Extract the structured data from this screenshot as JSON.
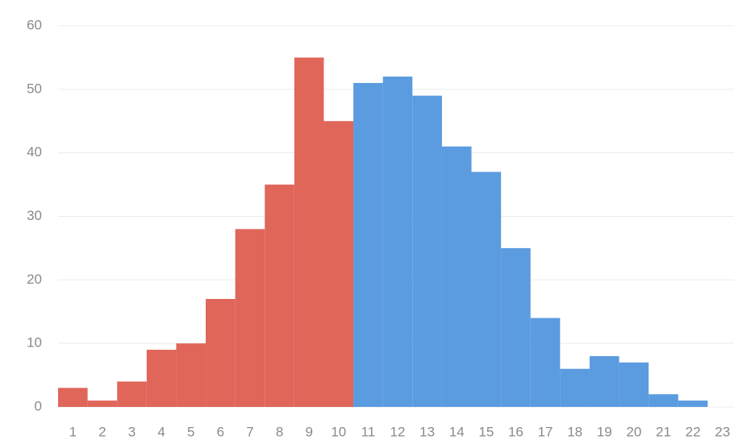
{
  "chart_data": {
    "type": "bar",
    "categories": [
      "1",
      "2",
      "3",
      "4",
      "5",
      "6",
      "7",
      "8",
      "9",
      "10",
      "11",
      "12",
      "13",
      "14",
      "15",
      "16",
      "17",
      "18",
      "19",
      "20",
      "21",
      "22",
      "23"
    ],
    "values": [
      3,
      1,
      4,
      9,
      10,
      17,
      28,
      35,
      55,
      45,
      51,
      52,
      49,
      41,
      37,
      25,
      14,
      6,
      8,
      7,
      2,
      1,
      null
    ],
    "colors": [
      "#e0665a",
      "#e0665a",
      "#e0665a",
      "#e0665a",
      "#e0665a",
      "#e0665a",
      "#e0665a",
      "#e0665a",
      "#e0665a",
      "#e0665a",
      "#5b9be0",
      "#5b9be0",
      "#5b9be0",
      "#5b9be0",
      "#5b9be0",
      "#5b9be0",
      "#5b9be0",
      "#5b9be0",
      "#5b9be0",
      "#5b9be0",
      "#5b9be0",
      "#5b9be0",
      null
    ],
    "ylim": [
      0,
      60
    ],
    "yticks": [
      0,
      10,
      20,
      30,
      40,
      50,
      60
    ],
    "grid": true
  }
}
